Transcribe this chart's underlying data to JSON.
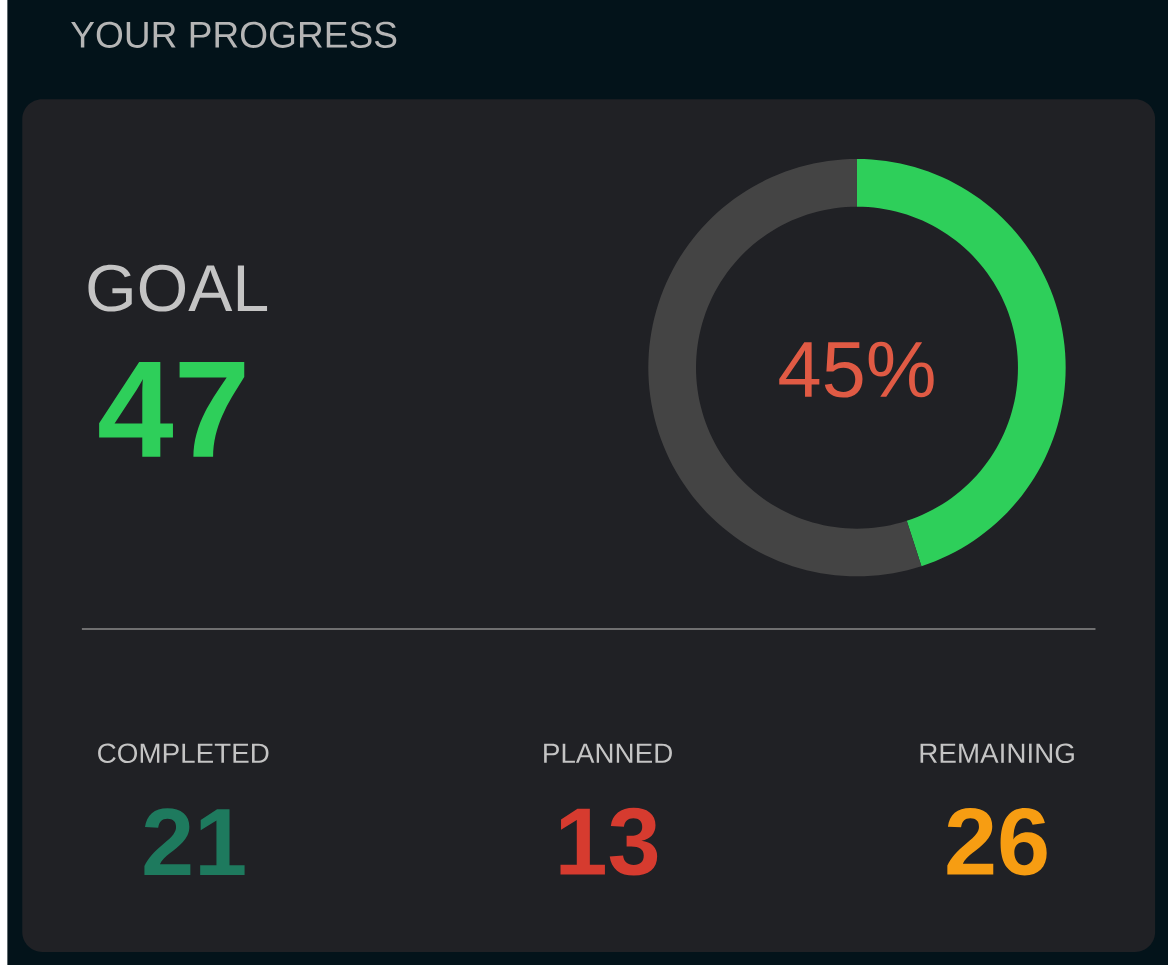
{
  "chart_data": {
    "type": "donut",
    "title": "YOUR PROGRESS",
    "categories": [
      null,
      null
    ],
    "values": [
      45,
      55
    ],
    "colors": [
      "#2ecf5a",
      "#444444"
    ],
    "annotations": [
      "45%",
      "GOAL",
      "47",
      "COMPLETED",
      "21",
      "PLANNED",
      "13",
      "REMAINING",
      "26"
    ]
  }
}
